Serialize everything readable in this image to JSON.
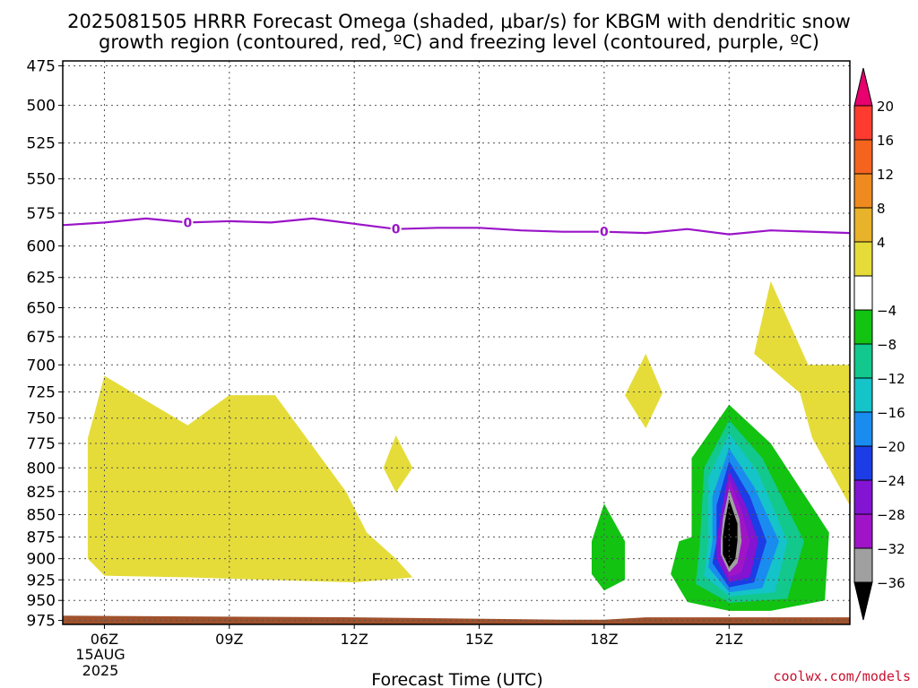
{
  "chart_data": {
    "type": "heatmap",
    "title_line1": "2025081505 HRRR Forecast Omega (shaded, μbar/s) for KBGM with dendritic snow",
    "title_line2": "growth region (contoured, red, ºC) and freezing level (contoured, purple, ºC)",
    "xlabel": "Forecast Time (UTC)",
    "x_ticks": [
      {
        "label": "06Z",
        "hour": 6
      },
      {
        "label": "09Z",
        "hour": 9
      },
      {
        "label": "12Z",
        "hour": 12
      },
      {
        "label": "15Z",
        "hour": 15
      },
      {
        "label": "18Z",
        "hour": 18
      },
      {
        "label": "21Z",
        "hour": 21
      }
    ],
    "x_date_line1": "15AUG",
    "x_date_line2": "2025",
    "xlim": [
      5,
      23.9
    ],
    "y_ticks": [
      475,
      500,
      525,
      550,
      575,
      600,
      625,
      650,
      675,
      700,
      725,
      750,
      775,
      800,
      825,
      850,
      875,
      900,
      925,
      950,
      975
    ],
    "ylim": [
      472,
      980
    ],
    "y_scale": "log-pressure, inverted",
    "grid": true,
    "colorbar": {
      "labels": [
        "20",
        "16",
        "12",
        "8",
        "4",
        "−4",
        "−8",
        "−12",
        "−16",
        "−20",
        "−24",
        "−28",
        "−32",
        "−36"
      ],
      "bins": [
        {
          "range": "> 20",
          "color": "#e8006e"
        },
        {
          "range": "16 to 20",
          "color": "#ff3b2f"
        },
        {
          "range": "12 to 16",
          "color": "#f5641e"
        },
        {
          "range": "8 to 12",
          "color": "#ee8a20"
        },
        {
          "range": "4 to 8",
          "color": "#e8b32a"
        },
        {
          "range": "0 to 4",
          "color": "#e5dc3a"
        },
        {
          "range": "-4 to 4",
          "color": "#ffffff"
        },
        {
          "range": "-8 to -4",
          "color": "#12c312"
        },
        {
          "range": "-12 to -8",
          "color": "#12c88c"
        },
        {
          "range": "-16 to -12",
          "color": "#14c4c8"
        },
        {
          "range": "-20 to -16",
          "color": "#1a8cf0"
        },
        {
          "range": "-24 to -20",
          "color": "#1c3ce6"
        },
        {
          "range": "-28 to -24",
          "color": "#8214d2"
        },
        {
          "range": "-32 to -28",
          "color": "#a014c8"
        },
        {
          "range": "-36 to -32",
          "color": "#a0a0a0"
        },
        {
          "range": "< -36",
          "color": "#000000"
        }
      ]
    },
    "freezing_level": {
      "color": "#9a14c8",
      "label": "0",
      "label_hours": [
        8,
        13,
        18
      ],
      "points": [
        [
          5,
          584
        ],
        [
          6,
          582
        ],
        [
          7,
          579
        ],
        [
          8,
          582
        ],
        [
          9,
          581
        ],
        [
          10,
          582
        ],
        [
          11,
          579
        ],
        [
          12,
          583
        ],
        [
          13,
          587
        ],
        [
          14,
          586
        ],
        [
          15,
          586
        ],
        [
          16,
          588
        ],
        [
          17,
          589
        ],
        [
          18,
          589
        ],
        [
          19,
          590
        ],
        [
          20,
          587
        ],
        [
          21,
          591
        ],
        [
          22,
          588
        ],
        [
          23.9,
          590
        ]
      ]
    },
    "shaded_regions": [
      {
        "value": "0 to 4",
        "color": "#e5dc3a",
        "points": [
          [
            6.0,
            710
          ],
          [
            8.0,
            757
          ],
          [
            9.0,
            728
          ],
          [
            10.1,
            728
          ],
          [
            11.8,
            825
          ],
          [
            12.3,
            870
          ],
          [
            13.0,
            900
          ],
          [
            13.4,
            922
          ],
          [
            12.0,
            928
          ],
          [
            8.0,
            922
          ],
          [
            6.0,
            920
          ],
          [
            5.6,
            900
          ],
          [
            5.6,
            770
          ]
        ]
      },
      {
        "value": "0 to 4",
        "color": "#e5dc3a",
        "points": [
          [
            13.0,
            767
          ],
          [
            13.4,
            800
          ],
          [
            13.0,
            826
          ],
          [
            12.7,
            800
          ]
        ]
      },
      {
        "value": "0 to 4",
        "color": "#e5dc3a",
        "points": [
          [
            19.0,
            690
          ],
          [
            19.4,
            726
          ],
          [
            19.0,
            760
          ],
          [
            18.5,
            728
          ]
        ]
      },
      {
        "value": "0 to 4",
        "color": "#e5dc3a",
        "points": [
          [
            22.0,
            628
          ],
          [
            22.9,
            700
          ],
          [
            23.9,
            700
          ],
          [
            23.9,
            840
          ],
          [
            23.0,
            770
          ],
          [
            22.7,
            726
          ],
          [
            21.6,
            690
          ]
        ]
      },
      {
        "value": "-8 to -4",
        "color": "#12c312",
        "points": [
          [
            18.0,
            838
          ],
          [
            18.5,
            880
          ],
          [
            18.5,
            925
          ],
          [
            18.0,
            938
          ],
          [
            17.7,
            918
          ],
          [
            17.7,
            880
          ]
        ]
      },
      {
        "value": "-8 to -4",
        "color": "#12c312",
        "points": [
          [
            21.0,
            737
          ],
          [
            22.0,
            775
          ],
          [
            23.4,
            870
          ],
          [
            23.3,
            950
          ],
          [
            22.0,
            963
          ],
          [
            21.0,
            963
          ],
          [
            20.0,
            952
          ],
          [
            19.6,
            918
          ],
          [
            19.8,
            880
          ],
          [
            20.1,
            875
          ],
          [
            20.1,
            790
          ]
        ]
      },
      {
        "value": "-12 to -8",
        "color": "#12c88c",
        "points": [
          [
            21.0,
            752
          ],
          [
            21.8,
            790
          ],
          [
            22.8,
            880
          ],
          [
            22.4,
            948
          ],
          [
            21.0,
            953
          ],
          [
            20.2,
            930
          ],
          [
            20.3,
            880
          ],
          [
            20.4,
            800
          ]
        ]
      },
      {
        "value": "-16 to -12",
        "color": "#14c4c8",
        "points": [
          [
            21.0,
            765
          ],
          [
            21.7,
            805
          ],
          [
            22.4,
            880
          ],
          [
            22.1,
            940
          ],
          [
            21.0,
            945
          ],
          [
            20.4,
            920
          ],
          [
            20.5,
            880
          ],
          [
            20.5,
            810
          ]
        ]
      },
      {
        "value": "-20 to -16",
        "color": "#1a8cf0",
        "points": [
          [
            21.0,
            780
          ],
          [
            21.6,
            820
          ],
          [
            22.2,
            880
          ],
          [
            21.8,
            935
          ],
          [
            21.0,
            940
          ],
          [
            20.5,
            910
          ],
          [
            20.6,
            880
          ],
          [
            20.6,
            830
          ]
        ]
      },
      {
        "value": "-24 to -20",
        "color": "#1c3ce6",
        "points": [
          [
            21.0,
            793
          ],
          [
            21.5,
            830
          ],
          [
            21.9,
            880
          ],
          [
            21.6,
            928
          ],
          [
            21.0,
            934
          ],
          [
            20.6,
            905
          ],
          [
            20.7,
            880
          ],
          [
            20.7,
            840
          ]
        ]
      },
      {
        "value": "-28 to -24",
        "color": "#8214d2",
        "points": [
          [
            21.0,
            803
          ],
          [
            21.4,
            840
          ],
          [
            21.7,
            880
          ],
          [
            21.5,
            922
          ],
          [
            21.0,
            928
          ],
          [
            20.7,
            900
          ],
          [
            20.7,
            880
          ],
          [
            20.8,
            850
          ]
        ]
      },
      {
        "value": "-32 to -28",
        "color": "#a014c8",
        "points": [
          [
            21.0,
            812
          ],
          [
            21.3,
            845
          ],
          [
            21.5,
            880
          ],
          [
            21.3,
            916
          ],
          [
            21.0,
            922
          ],
          [
            20.8,
            895
          ],
          [
            20.8,
            880
          ],
          [
            20.9,
            852
          ]
        ]
      },
      {
        "value": "-36 to -32",
        "color": "#a0a0a0",
        "points": [
          [
            21.0,
            822
          ],
          [
            21.25,
            855
          ],
          [
            21.3,
            880
          ],
          [
            21.2,
            905
          ],
          [
            21.0,
            916
          ],
          [
            20.8,
            895
          ],
          [
            20.8,
            880
          ],
          [
            20.85,
            855
          ]
        ]
      },
      {
        "value": "< -36",
        "color": "#000000",
        "points": [
          [
            21.0,
            833
          ],
          [
            21.2,
            860
          ],
          [
            21.2,
            880
          ],
          [
            21.15,
            900
          ],
          [
            21.0,
            910
          ],
          [
            20.85,
            895
          ],
          [
            20.85,
            875
          ],
          [
            20.9,
            858
          ]
        ]
      }
    ],
    "terrain": {
      "color": "#a0522d",
      "points": [
        [
          5,
          969
        ],
        [
          12,
          971
        ],
        [
          17,
          974
        ],
        [
          18,
          974
        ],
        [
          19,
          971
        ],
        [
          23.9,
          971
        ]
      ]
    }
  },
  "credit": "coolwx.com/models"
}
